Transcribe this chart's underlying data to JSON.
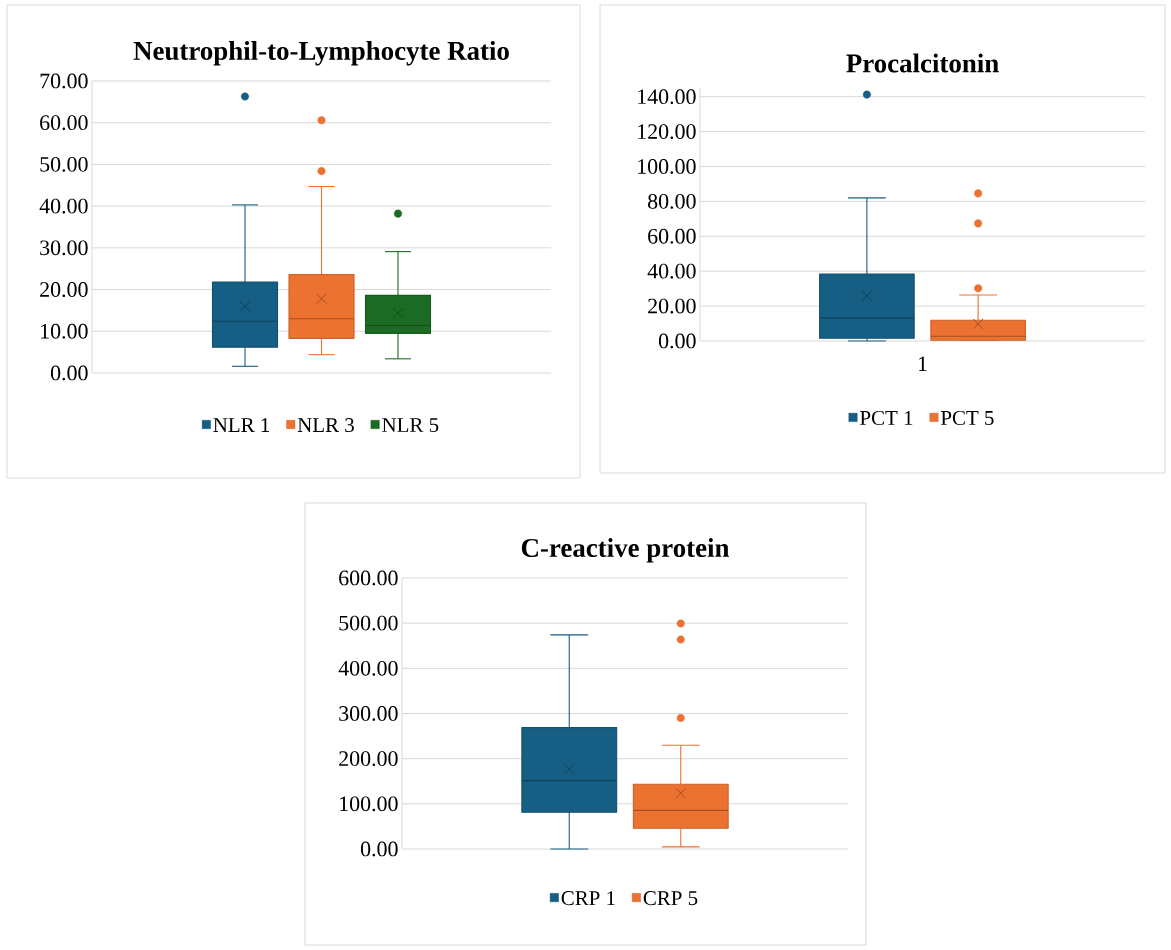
{
  "chart_data": [
    {
      "type": "box",
      "title": "Neutrophil-to-Lymphocyte Ratio",
      "categories": [
        null
      ],
      "series": [
        {
          "name": "NLR 1",
          "color": "#165e83",
          "boxes": [
            {
              "low": 1.6,
              "q1": 6.2,
              "median": 12.4,
              "q3": 21.8,
              "high": 40.3,
              "mean": 16.0,
              "outliers": [
                66.3
              ]
            }
          ]
        },
        {
          "name": "NLR 3",
          "color": "#ec7232",
          "boxes": [
            {
              "low": 4.4,
              "q1": 8.3,
              "median": 13.0,
              "q3": 23.6,
              "high": 44.7,
              "mean": 17.8,
              "outliers": [
                48.4,
                60.6
              ]
            }
          ]
        },
        {
          "name": "NLR 5",
          "color": "#1c6b24",
          "boxes": [
            {
              "low": 3.4,
              "q1": 9.5,
              "median": 11.4,
              "q3": 18.6,
              "high": 29.1,
              "mean": 14.4,
              "outliers": [
                38.2
              ]
            }
          ]
        }
      ],
      "ylim": [
        0,
        70
      ],
      "yticks": [
        {
          "value": 0,
          "label": "0.00"
        },
        {
          "value": 10,
          "label": "10.00"
        },
        {
          "value": 20,
          "label": "20.00"
        },
        {
          "value": 30,
          "label": "30.00"
        },
        {
          "value": 40,
          "label": "40.00"
        },
        {
          "value": 50,
          "label": "50.00"
        },
        {
          "value": 60,
          "label": "60.00"
        },
        {
          "value": 70,
          "label": "70.00"
        }
      ],
      "grid": "y",
      "legend": "bottom"
    },
    {
      "type": "box",
      "title": "Procalcitonin",
      "categories": [
        null
      ],
      "annotations": [
        "1"
      ],
      "series": [
        {
          "name": "PCT 1",
          "color": "#165e83",
          "boxes": [
            {
              "low": 0,
              "q1": 1.6,
              "median": 13.1,
              "q3": 38.4,
              "high": 82.0,
              "mean": 26.0,
              "outliers": [
                141.2
              ]
            }
          ]
        },
        {
          "name": "PCT 5",
          "color": "#ec7232",
          "boxes": [
            {
              "low": 0.4,
              "q1": 0.4,
              "median": 2.7,
              "q3": 11.9,
              "high": 26.4,
              "mean": 9.8,
              "outliers": [
                30.2,
                67.4,
                84.6
              ]
            }
          ]
        }
      ],
      "ylim": [
        0,
        145
      ],
      "yticks": [
        {
          "value": 0,
          "label": "0.00"
        },
        {
          "value": 20,
          "label": "20.00"
        },
        {
          "value": 40,
          "label": "40.00"
        },
        {
          "value": 60,
          "label": "60.00"
        },
        {
          "value": 80,
          "label": "80.00"
        },
        {
          "value": 100,
          "label": "100.00"
        },
        {
          "value": 120,
          "label": "120.00"
        },
        {
          "value": 140,
          "label": "140.00"
        }
      ],
      "grid": "y",
      "legend": "bottom"
    },
    {
      "type": "box",
      "title": "C-reactive protein",
      "categories": [
        null
      ],
      "series": [
        {
          "name": "CRP 1",
          "color": "#165e83",
          "boxes": [
            {
              "low": 0,
              "q1": 81.6,
              "median": 151.4,
              "q3": 268.7,
              "high": 474,
              "mean": 176.7
            }
          ]
        },
        {
          "name": "CRP 5",
          "color": "#ec7232",
          "boxes": [
            {
              "low": 4.8,
              "q1": 46,
              "median": 85.6,
              "q3": 143.5,
              "high": 229.8,
              "mean": 123.6,
              "outliers": [
                290,
                463.7,
                499.3
              ]
            }
          ]
        }
      ],
      "ylim": [
        0,
        600
      ],
      "yticks": [
        {
          "value": 0,
          "label": "0.00"
        },
        {
          "value": 100,
          "label": "100.00"
        },
        {
          "value": 200,
          "label": "200.00"
        },
        {
          "value": 300,
          "label": "300.00"
        },
        {
          "value": 400,
          "label": "400.00"
        },
        {
          "value": 500,
          "label": "500.00"
        },
        {
          "value": 600,
          "label": "600.00"
        }
      ],
      "grid": "y",
      "legend": "bottom"
    }
  ]
}
